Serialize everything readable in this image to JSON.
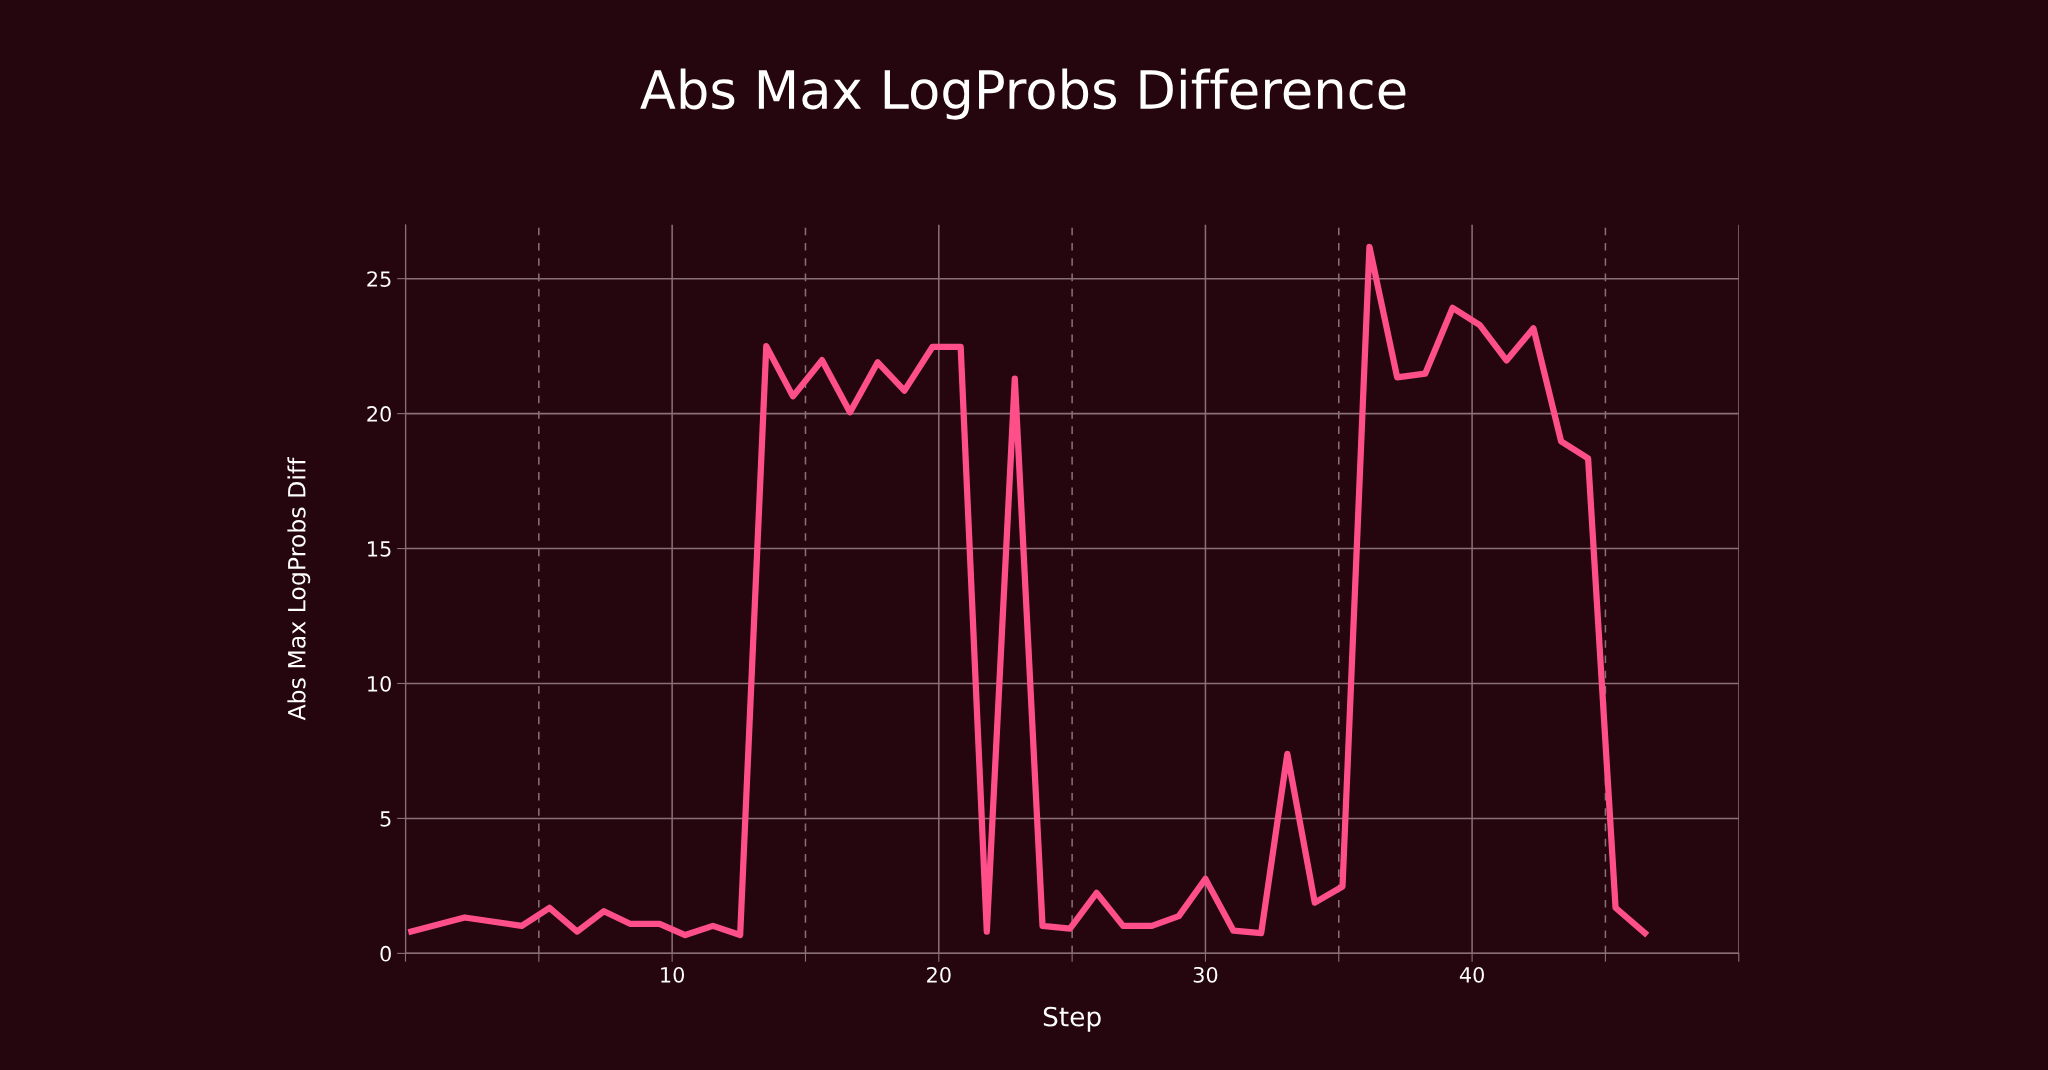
{
  "chart_data": {
    "type": "line",
    "title": "Abs Max LogProbs Difference",
    "xlabel": "Step",
    "ylabel": "Abs Max LogProbs Diff",
    "series": [
      {
        "color": "#ff4f8b",
        "x": [
          0.22,
          2.22,
          4.36,
          5.4,
          6.44,
          7.44,
          8.44,
          9.53,
          10.49,
          11.53,
          12.55,
          13.53,
          14.53,
          15.62,
          16.67,
          17.71,
          18.71,
          19.76,
          20.82,
          21.8,
          22.85,
          23.89,
          24.92,
          25.92,
          26.91,
          27.99,
          29.0,
          30.0,
          31.05,
          32.09,
          33.07,
          34.1,
          35.14,
          36.15,
          37.19,
          38.24,
          39.27,
          40.29,
          41.29,
          42.3,
          43.34,
          44.35,
          45.38,
          46.48
        ],
        "values": [
          0.81,
          1.33,
          1.02,
          1.69,
          0.81,
          1.56,
          1.09,
          1.09,
          0.68,
          1.02,
          0.68,
          22.5,
          20.64,
          21.98,
          20.05,
          21.9,
          20.85,
          22.47,
          22.47,
          0.81,
          21.3,
          1.02,
          0.92,
          2.24,
          1.02,
          1.02,
          1.38,
          2.76,
          0.84,
          0.75,
          7.39,
          1.88,
          2.48,
          26.18,
          21.34,
          21.48,
          23.92,
          23.28,
          21.97,
          23.16,
          18.97,
          18.34,
          1.69,
          0.75
        ]
      }
    ],
    "xlim": [
      0,
      50
    ],
    "ylim": [
      0,
      27
    ],
    "xticks": [
      {
        "value": 0,
        "label": null
      },
      {
        "value": 5,
        "label": null
      },
      10,
      {
        "value": 15,
        "label": null
      },
      20,
      {
        "value": 25,
        "label": null
      },
      30,
      {
        "value": 35,
        "label": null
      },
      40,
      {
        "value": 45,
        "label": null
      },
      {
        "value": 50,
        "label": null
      }
    ],
    "yticks": [
      0,
      5,
      10,
      15,
      20,
      25
    ],
    "grid": true,
    "line_style": "solid",
    "marker": "none",
    "legend": false
  }
}
